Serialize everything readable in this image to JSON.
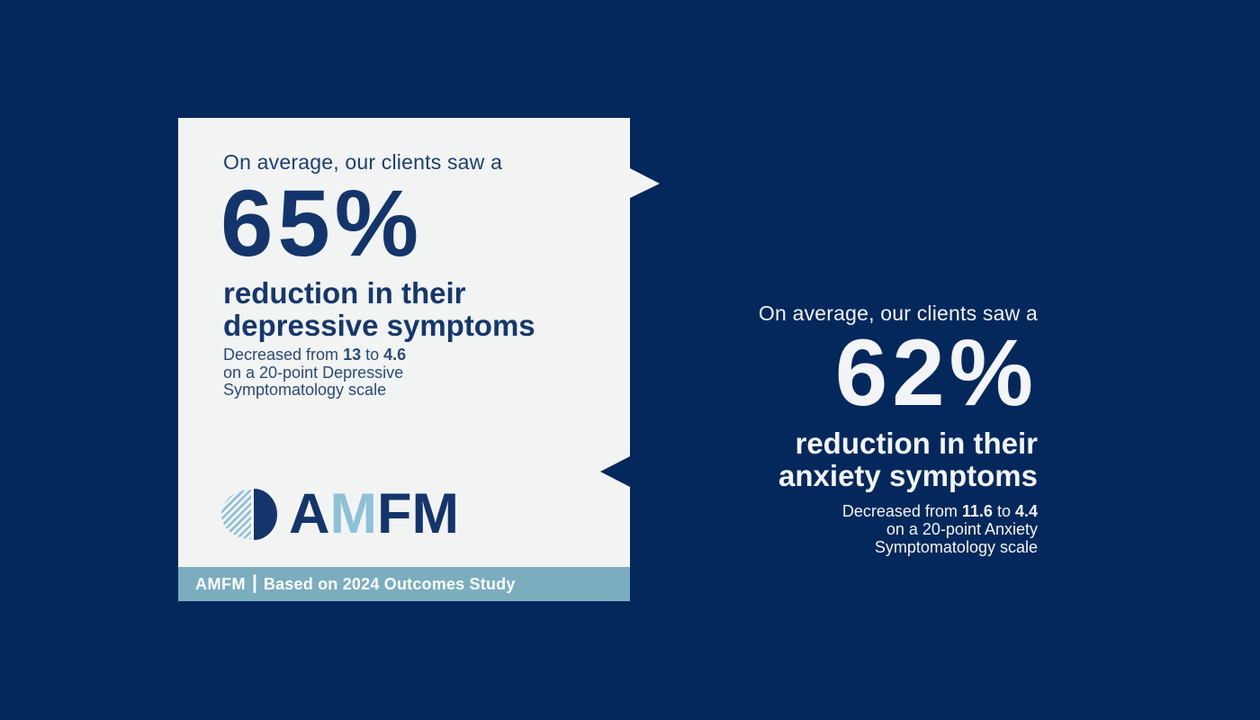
{
  "colors": {
    "background_navy": "#04285C",
    "card_background": "#F2F4F3",
    "headline_navy": "#16376C",
    "stat_navy": "#14356B",
    "detail_navy": "#2B4A79",
    "footer_teal": "#7BADBF",
    "logo_light_blue": "#8FC1D6",
    "light_text": "#F2F4F6"
  },
  "left_card": {
    "intro": "On average, our clients saw a",
    "stat_value": "65%",
    "stat_label_line1": "reduction in their",
    "stat_label_line2": "depressive symptoms",
    "detail": {
      "prefix": "Decreased from ",
      "from_value": "13",
      "connector": " to ",
      "to_value": "4.6",
      "line2": "on a 20-point Depressive",
      "line3": "Symptomatology scale"
    },
    "logo": {
      "letter_a": "A",
      "letter_m1": "M",
      "letter_f": "F",
      "letter_m2": "M"
    },
    "footer": {
      "brand": "AMFM",
      "separator": "|",
      "caption": "Based on 2024 Outcomes Study"
    }
  },
  "right_panel": {
    "intro": "On average, our clients saw a",
    "stat_value": "62%",
    "stat_label_line1": "reduction in their",
    "stat_label_line2": "anxiety symptoms",
    "detail": {
      "prefix": "Decreased from ",
      "from_value": "11.6",
      "connector": " to ",
      "to_value": "4.4",
      "line2": "on a 20-point Anxiety",
      "line3": "Symptomatology scale"
    }
  }
}
